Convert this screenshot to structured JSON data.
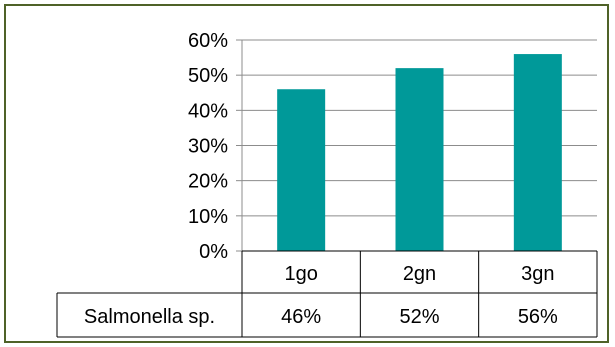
{
  "chart_data": {
    "type": "bar",
    "title": "",
    "xlabel": "",
    "ylabel": "",
    "categories": [
      "1go",
      "2gn",
      "3gn"
    ],
    "series": [
      {
        "name": "Salmonella sp.",
        "values": [
          0.46,
          0.52,
          0.56
        ],
        "value_labels": [
          "46%",
          "52%",
          "56%"
        ],
        "color": "#009999"
      }
    ],
    "ylim": [
      0,
      0.6
    ],
    "y_ticks": [
      0,
      0.1,
      0.2,
      0.3,
      0.4,
      0.5,
      0.6
    ],
    "y_tick_labels": [
      "0%",
      "10%",
      "20%",
      "30%",
      "40%",
      "50%",
      "60%"
    ],
    "grid": true,
    "legend": "data-table-below"
  }
}
